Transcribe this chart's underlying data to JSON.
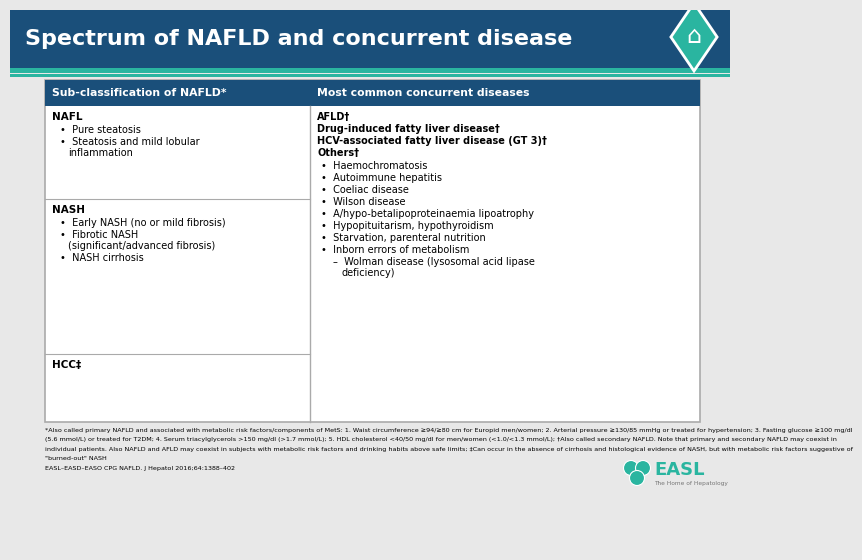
{
  "title": "Spectrum of NAFLD and concurrent disease",
  "title_bg": "#1a4f7a",
  "title_color": "#ffffff",
  "header_bg": "#1a4f7a",
  "header_color": "#ffffff",
  "col1_header": "Sub-classification of NAFLD*",
  "col2_header": "Most common concurrent diseases",
  "teal_color": "#2ab5a0",
  "border_color": "#aaaaaa",
  "table_bg": "#ffffff",
  "bg_color": "#e8e8e8",
  "footnote": "*Also called primary NAFLD and associated with metabolic risk factors/components of MetS: 1. Waist circumference ≥94/≥80 cm for Europid men/women; 2. Arterial pressure ≥130/85 mmHg or treated for hypertension; 3. Fasting glucose ≥100 mg/dl\n(5.6 mmol/L) or treated for T2DM; 4. Serum triacylglycerols >150 mg/dl (>1.7 mmol/L); 5. HDL cholesterol <40/50 mg/dl for men/women (<1.0/<1.3 mmol/L); †Also called secondary NAFLD. Note that primary and secondary NAFLD may coexist in\nindividual patients. Also NAFLD and AFLD may coexist in subjects with metabolic risk factors and drinking habits above safe limits; ‡Can occur in the absence of cirrhosis and histological evidence of NASH, but with metabolic risk factors suggestive of\n\"burned-out\" NASH\nEASL–EASD–EASO CPG NAFLD. J Hepatol 2016;64:1388–402"
}
